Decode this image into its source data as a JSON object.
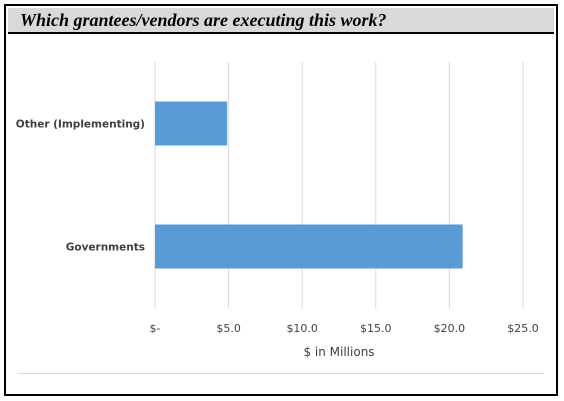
{
  "header": {
    "title": "Which grantees/vendors are executing this work?"
  },
  "chart_data": {
    "type": "bar",
    "orientation": "horizontal",
    "categories": [
      "Other (Implementing)",
      "Governments"
    ],
    "values": [
      4.9,
      20.9
    ],
    "xlabel": "$ in Millions",
    "ylabel": "",
    "xlim": [
      0,
      25
    ],
    "xticks": [
      0,
      5,
      10,
      15,
      20,
      25
    ],
    "xtick_labels": [
      "$-",
      "$5.0",
      "$10.0",
      "$15.0",
      "$20.0",
      "$25.0"
    ],
    "grid": true,
    "legend": "none",
    "colors": {
      "bar": "#5b9bd5",
      "grid": "#d9d9d9",
      "text": "#404040"
    }
  }
}
